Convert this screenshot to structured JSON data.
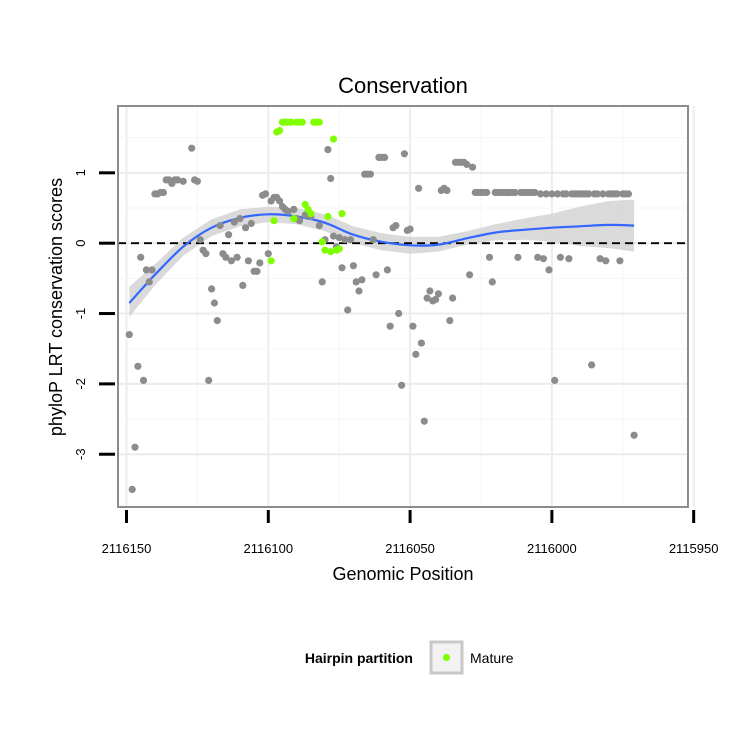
{
  "chart_data": {
    "type": "scatter",
    "title": "Conservation",
    "xlabel": "Genomic Position",
    "ylabel": "phyloP LRT conservation scores",
    "x_reversed": true,
    "xlim": [
      2116153,
      2115952
    ],
    "ylim": [
      -3.75,
      1.95
    ],
    "x_ticks": [
      2116150,
      2116100,
      2116050,
      2116000,
      2115950
    ],
    "x_tick_labels": [
      "2116150",
      "2116100",
      "2116050",
      "2116000",
      "2115950"
    ],
    "y_ticks": [
      1,
      0,
      -1,
      -2,
      -3
    ],
    "y_tick_labels": [
      "1",
      "0",
      "-1",
      "-2",
      "-3"
    ],
    "reference_line": {
      "y": 0,
      "style": "dashed"
    },
    "colors": {
      "other": "#8c8c8c",
      "mature": "#7fff00",
      "smooth": "#3366ff",
      "band": "#d3d3d3",
      "grid": "#ececec",
      "panel_border": "#8c8c8c",
      "axis": "#000000"
    },
    "legend": {
      "title": "Hairpin partition",
      "entries": [
        {
          "label": "Mature",
          "color": "#7fff00"
        }
      ],
      "position": "bottom"
    },
    "series": [
      {
        "name": "Other",
        "color": "#8c8c8c",
        "points": [
          [
            2116149,
            -1.3
          ],
          [
            2116148,
            -3.5
          ],
          [
            2116147,
            -2.9
          ],
          [
            2116146,
            -1.75
          ],
          [
            2116145,
            -0.2
          ],
          [
            2116144,
            -1.95
          ],
          [
            2116143,
            -0.38
          ],
          [
            2116142,
            -0.55
          ],
          [
            2116141,
            -0.38
          ],
          [
            2116140,
            0.7
          ],
          [
            2116139,
            0.7
          ],
          [
            2116138,
            0.72
          ],
          [
            2116137,
            0.72
          ],
          [
            2116136,
            0.9
          ],
          [
            2116135,
            0.9
          ],
          [
            2116134,
            0.85
          ],
          [
            2116133,
            0.9
          ],
          [
            2116132,
            0.9
          ],
          [
            2116130,
            0.88
          ],
          [
            2116127,
            1.35
          ],
          [
            2116126,
            0.9
          ],
          [
            2116125,
            0.88
          ],
          [
            2116124,
            0.05
          ],
          [
            2116123,
            -0.1
          ],
          [
            2116122,
            -0.15
          ],
          [
            2116121,
            -1.95
          ],
          [
            2116120,
            -0.65
          ],
          [
            2116119,
            -0.85
          ],
          [
            2116118,
            -1.1
          ],
          [
            2116117,
            0.25
          ],
          [
            2116116,
            -0.15
          ],
          [
            2116115,
            -0.2
          ],
          [
            2116114,
            0.12
          ],
          [
            2116113,
            -0.25
          ],
          [
            2116112,
            0.3
          ],
          [
            2116111,
            -0.2
          ],
          [
            2116110,
            0.35
          ],
          [
            2116109,
            -0.6
          ],
          [
            2116108,
            0.22
          ],
          [
            2116107,
            -0.25
          ],
          [
            2116106,
            0.28
          ],
          [
            2116105,
            -0.4
          ],
          [
            2116104,
            -0.4
          ],
          [
            2116103,
            -0.28
          ],
          [
            2116102,
            0.68
          ],
          [
            2116101,
            0.7
          ],
          [
            2116100,
            -0.15
          ],
          [
            2116099,
            0.6
          ],
          [
            2116098,
            0.65
          ],
          [
            2116097,
            0.65
          ],
          [
            2116096,
            0.6
          ],
          [
            2116095,
            0.52
          ],
          [
            2116094,
            0.48
          ],
          [
            2116093,
            0.45
          ],
          [
            2116091,
            0.48
          ],
          [
            2116090,
            0.35
          ],
          [
            2116089,
            0.32
          ],
          [
            2116087,
            0.4
          ],
          [
            2116085,
            0.38
          ],
          [
            2116082,
            0.25
          ],
          [
            2116081,
            -0.55
          ],
          [
            2116080,
            0.05
          ],
          [
            2116079,
            1.33
          ],
          [
            2116078,
            0.92
          ],
          [
            2116077,
            0.1
          ],
          [
            2116076,
            -0.05
          ],
          [
            2116075,
            0.08
          ],
          [
            2116074,
            -0.35
          ],
          [
            2116073,
            0.05
          ],
          [
            2116072,
            -0.95
          ],
          [
            2116071,
            0.05
          ],
          [
            2116070,
            -0.32
          ],
          [
            2116069,
            -0.55
          ],
          [
            2116068,
            -0.68
          ],
          [
            2116067,
            -0.52
          ],
          [
            2116066,
            0.98
          ],
          [
            2116065,
            0.98
          ],
          [
            2116064,
            0.98
          ],
          [
            2116063,
            0.05
          ],
          [
            2116062,
            -0.45
          ],
          [
            2116061,
            1.22
          ],
          [
            2116060,
            1.22
          ],
          [
            2116059,
            1.22
          ],
          [
            2116058,
            -0.38
          ],
          [
            2116057,
            -1.18
          ],
          [
            2116056,
            0.22
          ],
          [
            2116055,
            0.25
          ],
          [
            2116054,
            -1.0
          ],
          [
            2116053,
            -2.02
          ],
          [
            2116052,
            1.27
          ],
          [
            2116051,
            0.18
          ],
          [
            2116050,
            0.2
          ],
          [
            2116049,
            -1.18
          ],
          [
            2116048,
            -1.58
          ],
          [
            2116047,
            0.78
          ],
          [
            2116046,
            -1.42
          ],
          [
            2116045,
            -2.53
          ],
          [
            2116044,
            -0.78
          ],
          [
            2116043,
            -0.68
          ],
          [
            2116042,
            -0.82
          ],
          [
            2116041,
            -0.8
          ],
          [
            2116040,
            -0.72
          ],
          [
            2116039,
            0.75
          ],
          [
            2116038,
            0.78
          ],
          [
            2116037,
            0.75
          ],
          [
            2116036,
            -1.1
          ],
          [
            2116035,
            -0.78
          ],
          [
            2116034,
            1.15
          ],
          [
            2116033,
            1.15
          ],
          [
            2116032,
            1.15
          ],
          [
            2116031,
            1.15
          ],
          [
            2116030,
            1.12
          ],
          [
            2116029,
            -0.45
          ],
          [
            2116028,
            1.08
          ],
          [
            2116027,
            0.72
          ],
          [
            2116026,
            0.72
          ],
          [
            2116025,
            0.72
          ],
          [
            2116024,
            0.72
          ],
          [
            2116023,
            0.72
          ],
          [
            2116022,
            -0.2
          ],
          [
            2116021,
            -0.55
          ],
          [
            2116020,
            0.72
          ],
          [
            2116019,
            0.72
          ],
          [
            2116018,
            0.72
          ],
          [
            2116017,
            0.72
          ],
          [
            2116016,
            0.72
          ],
          [
            2116015,
            0.72
          ],
          [
            2116014,
            0.72
          ],
          [
            2116013,
            0.72
          ],
          [
            2116012,
            -0.2
          ],
          [
            2116011,
            0.72
          ],
          [
            2116010,
            0.72
          ],
          [
            2116009,
            0.72
          ],
          [
            2116008,
            0.72
          ],
          [
            2116007,
            0.72
          ],
          [
            2116006,
            0.72
          ],
          [
            2116005,
            -0.2
          ],
          [
            2116004,
            0.7
          ],
          [
            2116003,
            -0.22
          ],
          [
            2116002,
            0.7
          ],
          [
            2116001,
            -0.38
          ],
          [
            2116000,
            0.7
          ],
          [
            2115999,
            -1.95
          ],
          [
            2115998,
            0.7
          ],
          [
            2115997,
            -0.2
          ],
          [
            2115996,
            0.7
          ],
          [
            2115995,
            0.7
          ],
          [
            2115994,
            -0.22
          ],
          [
            2115993,
            0.7
          ],
          [
            2115992,
            0.7
          ],
          [
            2115991,
            0.7
          ],
          [
            2115990,
            0.7
          ],
          [
            2115989,
            0.7
          ],
          [
            2115988,
            0.7
          ],
          [
            2115987,
            0.7
          ],
          [
            2115986,
            -1.73
          ],
          [
            2115985,
            0.7
          ],
          [
            2115984,
            0.7
          ],
          [
            2115983,
            -0.22
          ],
          [
            2115982,
            0.7
          ],
          [
            2115981,
            -0.25
          ],
          [
            2115980,
            0.7
          ],
          [
            2115979,
            0.7
          ],
          [
            2115978,
            0.7
          ],
          [
            2115977,
            0.7
          ],
          [
            2115976,
            -0.25
          ],
          [
            2115975,
            0.7
          ],
          [
            2115974,
            0.7
          ],
          [
            2115973,
            0.7
          ],
          [
            2115971,
            -2.73
          ]
        ]
      },
      {
        "name": "Mature",
        "color": "#7fff00",
        "points": [
          [
            2116099,
            -0.25
          ],
          [
            2116098,
            0.32
          ],
          [
            2116097,
            1.58
          ],
          [
            2116096,
            1.6
          ],
          [
            2116095,
            1.72
          ],
          [
            2116094,
            1.72
          ],
          [
            2116093,
            1.72
          ],
          [
            2116092,
            1.72
          ],
          [
            2116091,
            0.35
          ],
          [
            2116090,
            1.72
          ],
          [
            2116089,
            1.72
          ],
          [
            2116088,
            1.72
          ],
          [
            2116087,
            0.55
          ],
          [
            2116086,
            0.48
          ],
          [
            2116085,
            0.42
          ],
          [
            2116084,
            1.72
          ],
          [
            2116083,
            1.72
          ],
          [
            2116082,
            1.72
          ],
          [
            2116081,
            0.02
          ],
          [
            2116080,
            -0.1
          ],
          [
            2116079,
            0.38
          ],
          [
            2116078,
            -0.12
          ],
          [
            2116077,
            1.48
          ],
          [
            2116076,
            -0.1
          ],
          [
            2116075,
            -0.08
          ],
          [
            2116074,
            0.42
          ]
        ]
      }
    ],
    "smooth": {
      "x": [
        2116149,
        2116140,
        2116130,
        2116120,
        2116110,
        2116100,
        2116090,
        2116080,
        2116070,
        2116060,
        2116050,
        2116040,
        2116030,
        2116020,
        2116010,
        2116000,
        2115990,
        2115980,
        2115971
      ],
      "y": [
        -0.85,
        -0.45,
        -0.05,
        0.22,
        0.36,
        0.41,
        0.38,
        0.29,
        0.12,
        0.02,
        -0.03,
        -0.02,
        0.07,
        0.15,
        0.19,
        0.22,
        0.24,
        0.26,
        0.25
      ],
      "lo": [
        -1.05,
        -0.6,
        -0.18,
        0.1,
        0.24,
        0.3,
        0.27,
        0.17,
        0.0,
        -0.1,
        -0.15,
        -0.12,
        -0.02,
        0.04,
        0.05,
        0.02,
        -0.04,
        -0.07,
        -0.12
      ],
      "hi": [
        -0.62,
        -0.3,
        0.08,
        0.34,
        0.48,
        0.52,
        0.5,
        0.41,
        0.24,
        0.14,
        0.09,
        0.09,
        0.17,
        0.27,
        0.35,
        0.42,
        0.52,
        0.6,
        0.62
      ]
    }
  }
}
